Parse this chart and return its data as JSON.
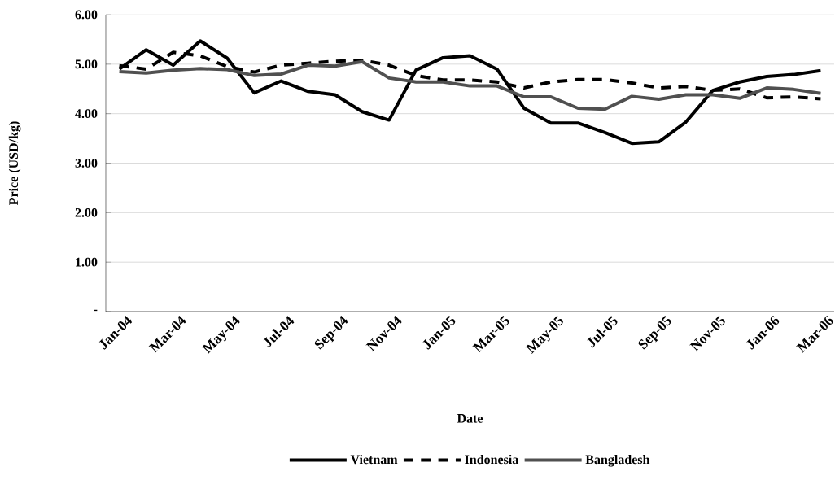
{
  "chart_data": {
    "type": "line",
    "xlabel": "Date",
    "ylabel": "Price (USD/kg)",
    "categories": [
      "Jan-04",
      null,
      "Mar-04",
      null,
      "May-04",
      null,
      "Jul-04",
      null,
      "Sep-04",
      null,
      "Nov-04",
      null,
      "Jan-05",
      null,
      "Mar-05",
      null,
      "May-05",
      null,
      "Jul-05",
      null,
      "Sep-05",
      null,
      "Nov-05",
      null,
      "Jan-06",
      null,
      "Mar-06"
    ],
    "series": [
      {
        "name": "Vietnam",
        "color": "#000000",
        "line_style": "solid",
        "values": [
          4.9,
          5.29,
          4.98,
          5.47,
          5.12,
          4.42,
          4.66,
          4.45,
          4.38,
          4.04,
          3.87,
          4.88,
          5.13,
          5.17,
          4.9,
          4.11,
          3.81,
          3.81,
          3.62,
          3.4,
          3.43,
          3.83,
          4.47,
          4.64,
          4.75,
          4.79,
          4.87
        ]
      },
      {
        "name": "Indonesia",
        "color": "#000000",
        "line_style": "dashed",
        "values": [
          4.97,
          4.9,
          5.24,
          5.17,
          4.95,
          4.84,
          4.98,
          5.02,
          5.06,
          5.08,
          4.98,
          4.77,
          4.68,
          4.68,
          4.64,
          4.52,
          4.64,
          4.69,
          4.69,
          4.62,
          4.52,
          4.55,
          4.47,
          4.5,
          4.32,
          4.34,
          4.3
        ]
      },
      {
        "name": "Bangladesh",
        "color": "#505050",
        "line_style": "solid",
        "values": [
          4.85,
          4.82,
          4.88,
          4.91,
          4.89,
          4.77,
          4.8,
          4.98,
          4.96,
          5.05,
          4.72,
          4.64,
          4.64,
          4.56,
          4.56,
          4.34,
          4.34,
          4.11,
          4.09,
          4.35,
          4.29,
          4.38,
          4.38,
          4.31,
          4.52,
          4.49,
          4.41
        ]
      }
    ],
    "ylim": [
      0,
      6
    ],
    "yticks": [
      {
        "value": 0,
        "label": "-"
      },
      {
        "value": 1,
        "label": "1.00"
      },
      {
        "value": 2,
        "label": "2.00"
      },
      {
        "value": 3,
        "label": "3.00"
      },
      {
        "value": 4,
        "label": "4.00"
      },
      {
        "value": 5,
        "label": "5.00"
      },
      {
        "value": 6,
        "label": "6.00"
      }
    ],
    "grid": "y",
    "legend": "bottom",
    "marker": "none"
  }
}
